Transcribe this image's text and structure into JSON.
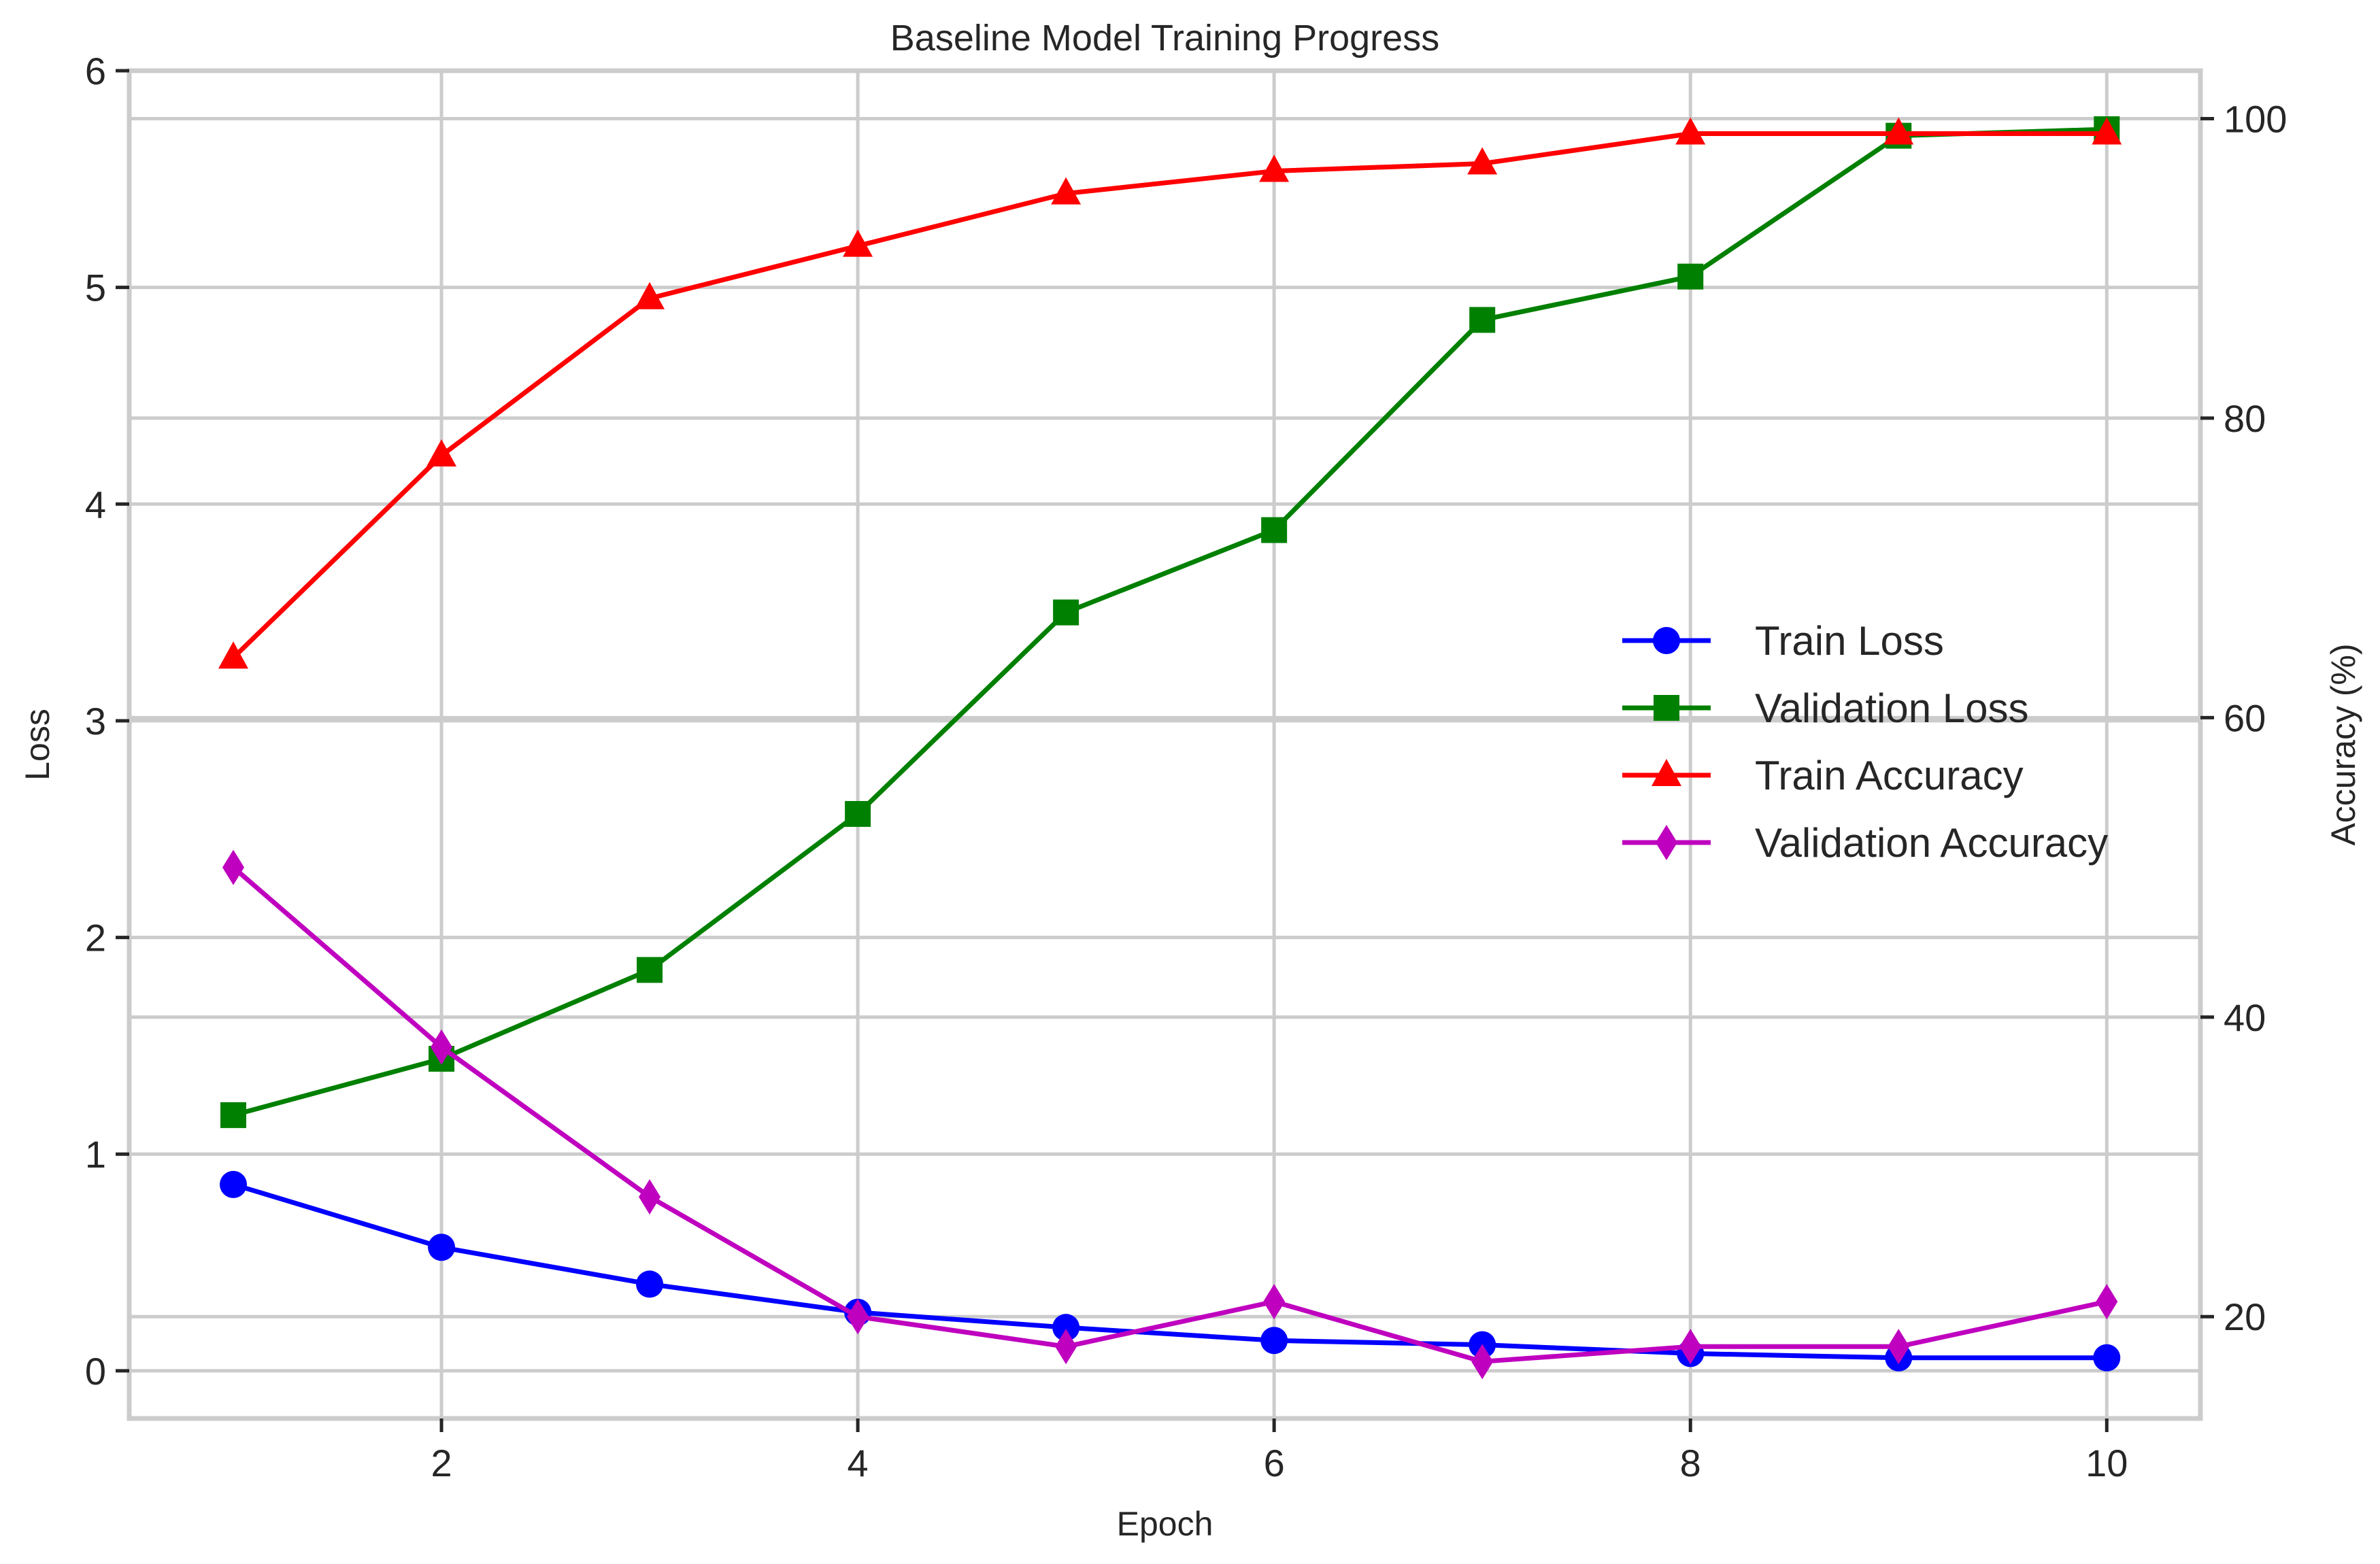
{
  "chart_data": {
    "type": "line",
    "title": "Baseline Model Training Progress",
    "xlabel": "Epoch",
    "ylabel": "Loss",
    "y2label": "Accuracy (%)",
    "xlim": [
      0.5,
      10.45
    ],
    "ylim": [
      -0.22,
      6.0
    ],
    "y2lim": [
      13.2,
      103.2
    ],
    "xticks": [
      2,
      4,
      6,
      8,
      10
    ],
    "yticks": [
      0,
      1,
      2,
      3,
      4,
      5,
      6
    ],
    "y2ticks": [
      20,
      40,
      60,
      80,
      100
    ],
    "grid": true,
    "legend_position": "center-right",
    "x": [
      1,
      2,
      3,
      4,
      5,
      6,
      7,
      8,
      9,
      10
    ],
    "series": [
      {
        "name": "Train Loss",
        "axis": "left",
        "color": "#0000ff",
        "marker": "circle",
        "values": [
          0.86,
          0.57,
          0.4,
          0.27,
          0.2,
          0.14,
          0.12,
          0.08,
          0.06,
          0.06
        ]
      },
      {
        "name": "Validation Loss",
        "axis": "left",
        "color": "#008000",
        "marker": "square",
        "values": [
          1.18,
          1.44,
          1.85,
          2.57,
          3.5,
          3.88,
          4.85,
          5.05,
          5.7,
          5.73
        ]
      },
      {
        "name": "Train Accuracy",
        "axis": "right",
        "color": "#ff0000",
        "marker": "triangle",
        "values": [
          64.0,
          77.5,
          88.0,
          91.5,
          95.0,
          96.5,
          97.0,
          99.0,
          99.0,
          99.0
        ]
      },
      {
        "name": "Validation Accuracy",
        "axis": "right",
        "color": "#bf00bf",
        "marker": "diamond",
        "values": [
          50.0,
          38.0,
          28.0,
          20.0,
          18.0,
          21.0,
          17.0,
          18.0,
          18.0,
          21.0
        ]
      }
    ]
  }
}
